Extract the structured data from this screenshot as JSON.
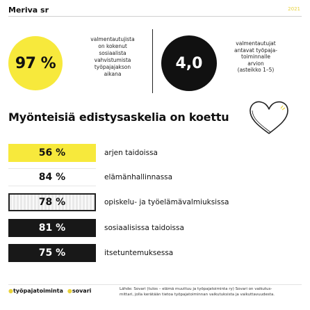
{
  "header": {
    "organization": "Meriva sr",
    "corner_mark": "2021"
  },
  "stat_yellow": {
    "value": "97 %",
    "lines": [
      "valmentautujista",
      "on kokenut",
      "sosiaalista",
      "vahvistumista",
      "työpajajakson",
      "aikana"
    ],
    "color": "#f7e93c"
  },
  "stat_black": {
    "value": "4,0",
    "lines": [
      "valmentautujat",
      "antavat työpaja-",
      "toiminnalle",
      "arvion",
      "(asteikko 1–5)"
    ],
    "color": "#111111"
  },
  "section": {
    "heading": "Myönteisiä edistysaskelia on koettu",
    "decoration_icon": "heart-outline-icon"
  },
  "progress": [
    {
      "value": "56 %",
      "label": "arjen taidoissa",
      "style": "yellow"
    },
    {
      "value": "84 %",
      "label": "elämänhallinnassa",
      "style": "white"
    },
    {
      "value": "78 %",
      "label": "opiskelu- ja työelämävalmiuksissa",
      "style": "gray"
    },
    {
      "value": "81 %",
      "label": "sosiaalisissa taidoissa",
      "style": "black"
    },
    {
      "value": "75 %",
      "label": "itsetuntemuksessa",
      "style": "black"
    }
  ],
  "footer": {
    "brand1": "työpajatoiminta",
    "brand2": "sovari",
    "source_line1": "Lähde: Sovari (tulos – elämä muuttuu ja työpajatoiminta ry) Sovari on vaikutus-",
    "source_line2": "mittari, jolla kerätään tietoa työpajatoiminnan vaikutuksista ja vaikuttavuudesta."
  }
}
